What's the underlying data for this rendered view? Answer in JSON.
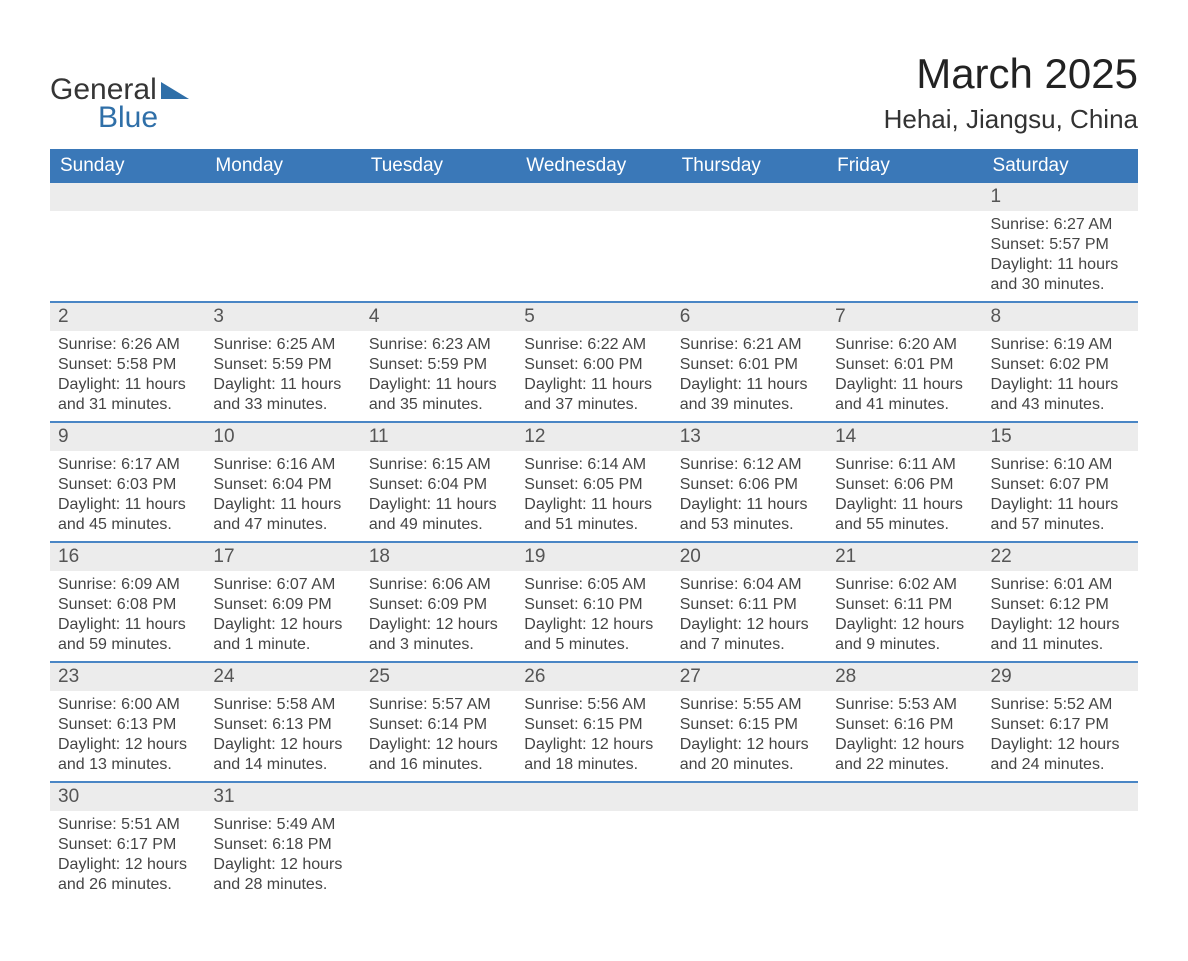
{
  "brand": {
    "word1": "General",
    "word2": "Blue",
    "triangle_color": "#2f6fa8"
  },
  "title": {
    "month": "March 2025",
    "location": "Hehai, Jiangsu, China"
  },
  "colors": {
    "header_blue": "#3a78b8",
    "accent_blue": "#2f6fa8",
    "row_shade": "#ececec",
    "divider": "#4a86c5",
    "text": "#353535",
    "bg": "#ffffff"
  },
  "typography": {
    "month_fontsize": 42,
    "location_fontsize": 26,
    "header_fontsize": 19,
    "daynum_fontsize": 19,
    "info_fontsize": 16
  },
  "layout": {
    "columns": 7,
    "rows_weeks": 6,
    "first_day_column_index": 6
  },
  "weekdays": [
    "Sunday",
    "Monday",
    "Tuesday",
    "Wednesday",
    "Thursday",
    "Friday",
    "Saturday"
  ],
  "labels": {
    "sunrise": "Sunrise",
    "sunset": "Sunset",
    "daylight": "Daylight"
  },
  "weeks": [
    [
      null,
      null,
      null,
      null,
      null,
      null,
      {
        "n": "1",
        "sunrise": "6:27 AM",
        "sunset": "5:57 PM",
        "daylight": "11 hours and 30 minutes."
      }
    ],
    [
      {
        "n": "2",
        "sunrise": "6:26 AM",
        "sunset": "5:58 PM",
        "daylight": "11 hours and 31 minutes."
      },
      {
        "n": "3",
        "sunrise": "6:25 AM",
        "sunset": "5:59 PM",
        "daylight": "11 hours and 33 minutes."
      },
      {
        "n": "4",
        "sunrise": "6:23 AM",
        "sunset": "5:59 PM",
        "daylight": "11 hours and 35 minutes."
      },
      {
        "n": "5",
        "sunrise": "6:22 AM",
        "sunset": "6:00 PM",
        "daylight": "11 hours and 37 minutes."
      },
      {
        "n": "6",
        "sunrise": "6:21 AM",
        "sunset": "6:01 PM",
        "daylight": "11 hours and 39 minutes."
      },
      {
        "n": "7",
        "sunrise": "6:20 AM",
        "sunset": "6:01 PM",
        "daylight": "11 hours and 41 minutes."
      },
      {
        "n": "8",
        "sunrise": "6:19 AM",
        "sunset": "6:02 PM",
        "daylight": "11 hours and 43 minutes."
      }
    ],
    [
      {
        "n": "9",
        "sunrise": "6:17 AM",
        "sunset": "6:03 PM",
        "daylight": "11 hours and 45 minutes."
      },
      {
        "n": "10",
        "sunrise": "6:16 AM",
        "sunset": "6:04 PM",
        "daylight": "11 hours and 47 minutes."
      },
      {
        "n": "11",
        "sunrise": "6:15 AM",
        "sunset": "6:04 PM",
        "daylight": "11 hours and 49 minutes."
      },
      {
        "n": "12",
        "sunrise": "6:14 AM",
        "sunset": "6:05 PM",
        "daylight": "11 hours and 51 minutes."
      },
      {
        "n": "13",
        "sunrise": "6:12 AM",
        "sunset": "6:06 PM",
        "daylight": "11 hours and 53 minutes."
      },
      {
        "n": "14",
        "sunrise": "6:11 AM",
        "sunset": "6:06 PM",
        "daylight": "11 hours and 55 minutes."
      },
      {
        "n": "15",
        "sunrise": "6:10 AM",
        "sunset": "6:07 PM",
        "daylight": "11 hours and 57 minutes."
      }
    ],
    [
      {
        "n": "16",
        "sunrise": "6:09 AM",
        "sunset": "6:08 PM",
        "daylight": "11 hours and 59 minutes."
      },
      {
        "n": "17",
        "sunrise": "6:07 AM",
        "sunset": "6:09 PM",
        "daylight": "12 hours and 1 minute."
      },
      {
        "n": "18",
        "sunrise": "6:06 AM",
        "sunset": "6:09 PM",
        "daylight": "12 hours and 3 minutes."
      },
      {
        "n": "19",
        "sunrise": "6:05 AM",
        "sunset": "6:10 PM",
        "daylight": "12 hours and 5 minutes."
      },
      {
        "n": "20",
        "sunrise": "6:04 AM",
        "sunset": "6:11 PM",
        "daylight": "12 hours and 7 minutes."
      },
      {
        "n": "21",
        "sunrise": "6:02 AM",
        "sunset": "6:11 PM",
        "daylight": "12 hours and 9 minutes."
      },
      {
        "n": "22",
        "sunrise": "6:01 AM",
        "sunset": "6:12 PM",
        "daylight": "12 hours and 11 minutes."
      }
    ],
    [
      {
        "n": "23",
        "sunrise": "6:00 AM",
        "sunset": "6:13 PM",
        "daylight": "12 hours and 13 minutes."
      },
      {
        "n": "24",
        "sunrise": "5:58 AM",
        "sunset": "6:13 PM",
        "daylight": "12 hours and 14 minutes."
      },
      {
        "n": "25",
        "sunrise": "5:57 AM",
        "sunset": "6:14 PM",
        "daylight": "12 hours and 16 minutes."
      },
      {
        "n": "26",
        "sunrise": "5:56 AM",
        "sunset": "6:15 PM",
        "daylight": "12 hours and 18 minutes."
      },
      {
        "n": "27",
        "sunrise": "5:55 AM",
        "sunset": "6:15 PM",
        "daylight": "12 hours and 20 minutes."
      },
      {
        "n": "28",
        "sunrise": "5:53 AM",
        "sunset": "6:16 PM",
        "daylight": "12 hours and 22 minutes."
      },
      {
        "n": "29",
        "sunrise": "5:52 AM",
        "sunset": "6:17 PM",
        "daylight": "12 hours and 24 minutes."
      }
    ],
    [
      {
        "n": "30",
        "sunrise": "5:51 AM",
        "sunset": "6:17 PM",
        "daylight": "12 hours and 26 minutes."
      },
      {
        "n": "31",
        "sunrise": "5:49 AM",
        "sunset": "6:18 PM",
        "daylight": "12 hours and 28 minutes."
      },
      null,
      null,
      null,
      null,
      null
    ]
  ]
}
